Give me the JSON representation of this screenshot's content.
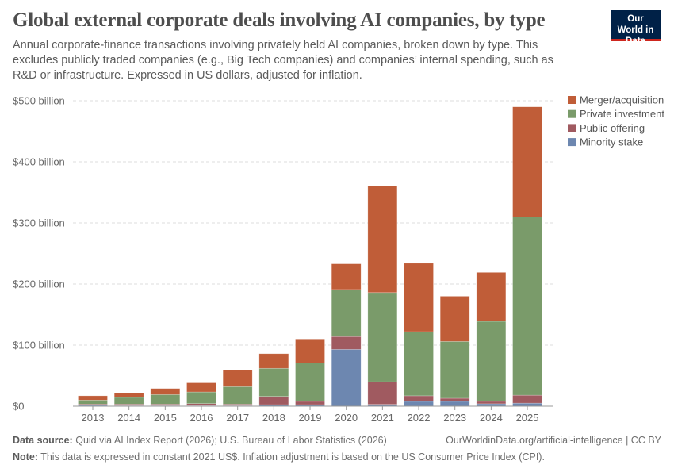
{
  "header": {
    "title": "Global external corporate deals involving AI companies, by type",
    "subtitle": "Annual corporate-finance transactions involving privately held AI companies, broken down by type. This excludes publicly traded companies (e.g., Big Tech companies) and companies’ internal spending, such as R&D or infrastructure. Expressed in US dollars, adjusted for inflation.",
    "logo": "Our World in Data"
  },
  "footer": {
    "source_label": "Data source:",
    "source": "Quid via AI Index Report (2026); U.S. Bureau of Labor Statistics (2026)",
    "url": "OurWorldinData.org/artificial-intelligence | CC BY",
    "note_label": "Note:",
    "note": "This data is expressed in constant 2021 US$. Inflation adjustment is based on the US Consumer Price Index (CPI)."
  },
  "chart_data": {
    "type": "bar",
    "stacked": true,
    "categories": [
      "2013",
      "2014",
      "2015",
      "2016",
      "2017",
      "2018",
      "2019",
      "2020",
      "2021",
      "2022",
      "2023",
      "2024",
      "2025"
    ],
    "ylim": [
      0,
      500
    ],
    "yticks": [
      0,
      100,
      200,
      300,
      400,
      500
    ],
    "ytick_labels": [
      "$0",
      "$100 billion",
      "$200 billion",
      "$300 billion",
      "$400 billion",
      "$500 billion"
    ],
    "grid": true,
    "legend": "right",
    "series": [
      {
        "name": "Minority stake",
        "color": "#6d87b0",
        "values": [
          1.5,
          1,
          1,
          1,
          1,
          2.5,
          2.5,
          93,
          3,
          8,
          8,
          4,
          5
        ]
      },
      {
        "name": "Public offering",
        "color": "#a05a60",
        "values": [
          2,
          2.5,
          2.5,
          3.3,
          2.5,
          13.5,
          5.5,
          21,
          37,
          9,
          5,
          4,
          13
        ]
      },
      {
        "name": "Private investment",
        "color": "#7a9b6a",
        "values": [
          6.5,
          11,
          15.5,
          19,
          28.5,
          46,
          63,
          77,
          146,
          105,
          93,
          131,
          292
        ]
      },
      {
        "name": "Merger/acquisition",
        "color": "#c05d38",
        "values": [
          7,
          7,
          10,
          15,
          27,
          24,
          39,
          42,
          175,
          112,
          74,
          80,
          180
        ]
      }
    ]
  }
}
